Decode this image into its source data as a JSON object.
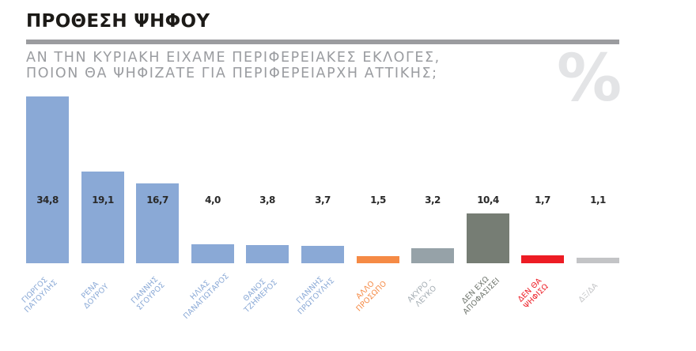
{
  "header": {
    "title": "ΠΡΟΘΕΣΗ ΨΗΦΟΥ",
    "subtitle_line1": "ΑΝ ΤΗΝ ΚΥΡΙΑΚΗ ΕΙΧΑΜΕ ΠΕΡΙΦΕΡΕΙΑΚΕΣ ΕΚΛΟΓΕΣ,",
    "subtitle_line2": "ΠΟΙΟΝ ΘΑ ΨΗΦΙΖΑΤΕ ΓΙΑ ΠΕΡΙΦΕΡΕΙΑΡΧΗ ΑΤΤΙΚΗΣ;",
    "percent_symbol": "%"
  },
  "colors": {
    "candidate": "#8aa9d6",
    "other_person": "#f58a45",
    "invalid_blank": "#96a2a8",
    "undecided": "#767d74",
    "will_not_vote": "#ed1c24",
    "dont_know": "#c3c4c6",
    "divider": "#9b9c9f",
    "subtitle": "#9a9ca0"
  },
  "chart_data": {
    "type": "bar",
    "title": "ΠΡΟΘΕΣΗ ΨΗΦΟΥ",
    "subtitle": "ΑΝ ΤΗΝ ΚΥΡΙΑΚΗ ΕΙΧΑΜΕ ΠΕΡΙΦΕΡΕΙΑΚΕΣ ΕΚΛΟΓΕΣ, ΠΟΙΟΝ ΘΑ ΨΗΦΙΖΑΤΕ ΓΙΑ ΠΕΡΙΦΕΡΕΙΑΡΧΗ ΑΤΤΙΚΗΣ;",
    "unit": "%",
    "xlabel": "",
    "ylabel": "",
    "grid": false,
    "legend": "none",
    "categories": [
      "ΓΙΩΡΓΟΣ ΠΑΤΟΥΛΗΣ",
      "ΡΕΝΑ ΔΟΥΡΟΥ",
      "ΓΙΑΝΝΗΣ ΣΓΟΥΡΟΣ",
      "ΗΛΙΑΣ ΠΑΝΑΓΙΩΤΑΡΟΣ",
      "ΘΑΝΟΣ ΤΖΗΜΕΡΟΣ",
      "ΓΙΑΝΝΗΣ ΠΡΩΤΟΥΛΗΣ",
      "ΑΛΛΟ ΠΡΟΣΩΠΟ",
      "ΑΚΥΡΟ - ΛΕΥΚΟ",
      "ΔΕΝ ΕΧΩ ΑΠΟΦΑΣΙΣΕΙ",
      "ΔΕΝ ΘΑ ΨΗΦΙΣΩ",
      "ΔΞ/ΔΑ"
    ],
    "values": [
      34.8,
      19.1,
      16.7,
      4.0,
      3.8,
      3.7,
      1.5,
      3.2,
      10.4,
      1.7,
      1.1
    ],
    "value_labels": [
      "34,8",
      "19,1",
      "16,7",
      "4,0",
      "3,8",
      "3,7",
      "1,5",
      "3,2",
      "10,4",
      "1,7",
      "1,1"
    ],
    "label_lines": [
      [
        "ΓΙΩΡΓΟΣ",
        "ΠΑΤΟΥΛΗΣ"
      ],
      [
        "ΡΕΝΑ",
        "ΔΟΥΡΟΥ"
      ],
      [
        "ΓΙΑΝΝΗΣ",
        "ΣΓΟΥΡΟΣ"
      ],
      [
        "ΗΛΙΑΣ",
        "ΠΑΝΑΓΙΩΤΑΡΟΣ"
      ],
      [
        "ΘΑΝΟΣ",
        "ΤΖΗΜΕΡΟΣ"
      ],
      [
        "ΓΙΑΝΝΗΣ",
        "ΠΡΩΤΟΥΛΗΣ"
      ],
      [
        "ΑΛΛΟ",
        "ΠΡΟΣΩΠΟ"
      ],
      [
        "ΑΚΥΡΟ -",
        "ΛΕΥΚΟ"
      ],
      [
        "ΔΕΝ ΕΧΩ",
        "ΑΠΟΦΑΣΙΣΕΙ"
      ],
      [
        "ΔΕΝ ΘΑ",
        "ΨΗΦΙΣΩ"
      ],
      [
        "ΔΞ/ΔΑ"
      ]
    ],
    "bar_colors": [
      "#8aa9d6",
      "#8aa9d6",
      "#8aa9d6",
      "#8aa9d6",
      "#8aa9d6",
      "#8aa9d6",
      "#f58a45",
      "#96a2a8",
      "#767d74",
      "#ed1c24",
      "#c3c4c6"
    ],
    "label_colors": [
      "#8aa9d6",
      "#8aa9d6",
      "#8aa9d6",
      "#8aa9d6",
      "#8aa9d6",
      "#8aa9d6",
      "#f58a45",
      "#a3acb2",
      "#6e746c",
      "#ed1c24",
      "#c3c4c6"
    ],
    "ylim": [
      0,
      35
    ]
  }
}
